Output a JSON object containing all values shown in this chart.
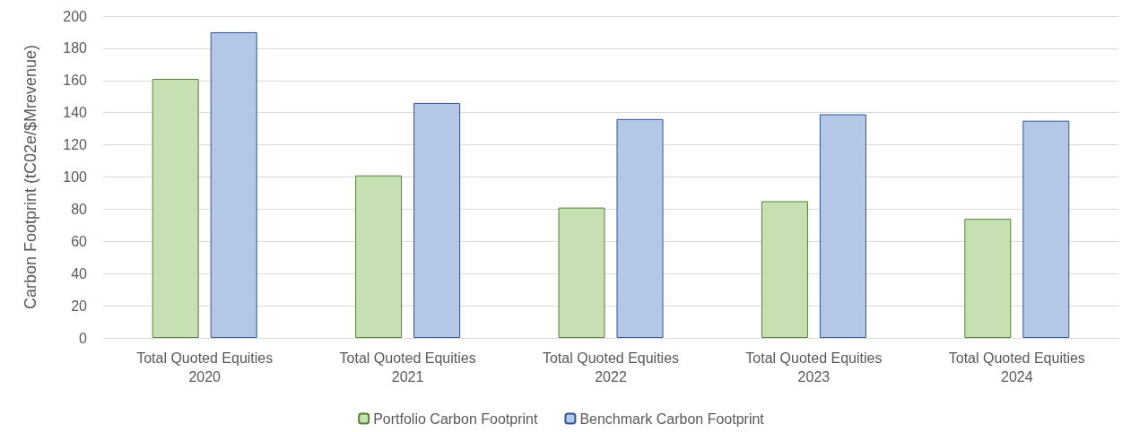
{
  "chart_data": {
    "type": "bar",
    "ylabel": "Carbon Footprint (tC02e/$Mrevenue)",
    "categories": [
      "Total Quoted Equities\n2020",
      "Total Quoted Equities\n2021",
      "Total Quoted Equities\n2022",
      "Total Quoted Equities\n2023",
      "Total Quoted Equities\n2024"
    ],
    "series": [
      {
        "name": "Portfolio Carbon Footprint",
        "color": "#c6e0b4",
        "values": [
          161,
          101,
          81,
          85,
          74
        ]
      },
      {
        "name": "Benchmark Carbon Footprint",
        "color": "#b4c7e7",
        "values": [
          190,
          146,
          136,
          139,
          135
        ]
      }
    ],
    "ylim": [
      0,
      200
    ],
    "yticks": [
      0,
      20,
      40,
      60,
      80,
      100,
      120,
      140,
      160,
      180,
      200
    ],
    "grid": "y",
    "legend": "bottom"
  }
}
